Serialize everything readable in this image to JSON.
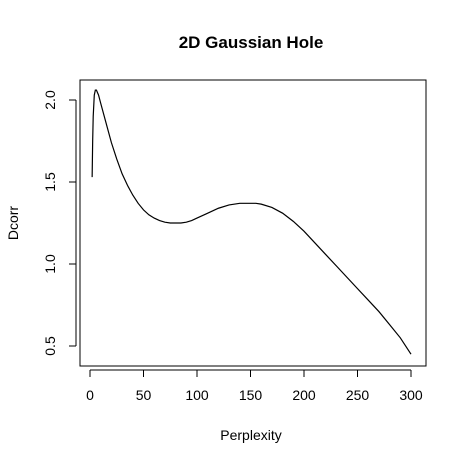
{
  "chart_data": {
    "type": "line",
    "title": "2D Gaussian Hole",
    "xlabel": "Perplexity",
    "ylabel": "Dcorr",
    "xlim": [
      0,
      300
    ],
    "ylim": [
      0.45,
      2.05
    ],
    "xticks": [
      0,
      50,
      100,
      150,
      200,
      250,
      300
    ],
    "xtick_labels": [
      "0",
      "50",
      "100",
      "150",
      "200",
      "250",
      "300"
    ],
    "yticks": [
      0.5,
      1.0,
      1.5,
      2.0
    ],
    "ytick_labels": [
      "0.5",
      "1.0",
      "1.5",
      "2.0"
    ],
    "grid": false,
    "series": [
      {
        "x": [
          2,
          2.5,
          3,
          4,
          5,
          6,
          8,
          10,
          15,
          20,
          25,
          30,
          35,
          40,
          45,
          50,
          55,
          60,
          65,
          70,
          75,
          80,
          85,
          90,
          95,
          100,
          110,
          120,
          130,
          140,
          150,
          155,
          160,
          170,
          180,
          190,
          200,
          210,
          220,
          230,
          240,
          250,
          260,
          270,
          280,
          290,
          300
        ],
        "y": [
          1.53,
          1.75,
          1.9,
          2.03,
          2.06,
          2.06,
          2.03,
          1.98,
          1.86,
          1.74,
          1.64,
          1.55,
          1.48,
          1.42,
          1.37,
          1.33,
          1.3,
          1.28,
          1.265,
          1.255,
          1.25,
          1.25,
          1.25,
          1.255,
          1.265,
          1.28,
          1.31,
          1.34,
          1.36,
          1.37,
          1.37,
          1.37,
          1.365,
          1.345,
          1.31,
          1.26,
          1.2,
          1.13,
          1.06,
          0.99,
          0.92,
          0.85,
          0.78,
          0.71,
          0.63,
          0.55,
          0.45
        ]
      }
    ]
  }
}
